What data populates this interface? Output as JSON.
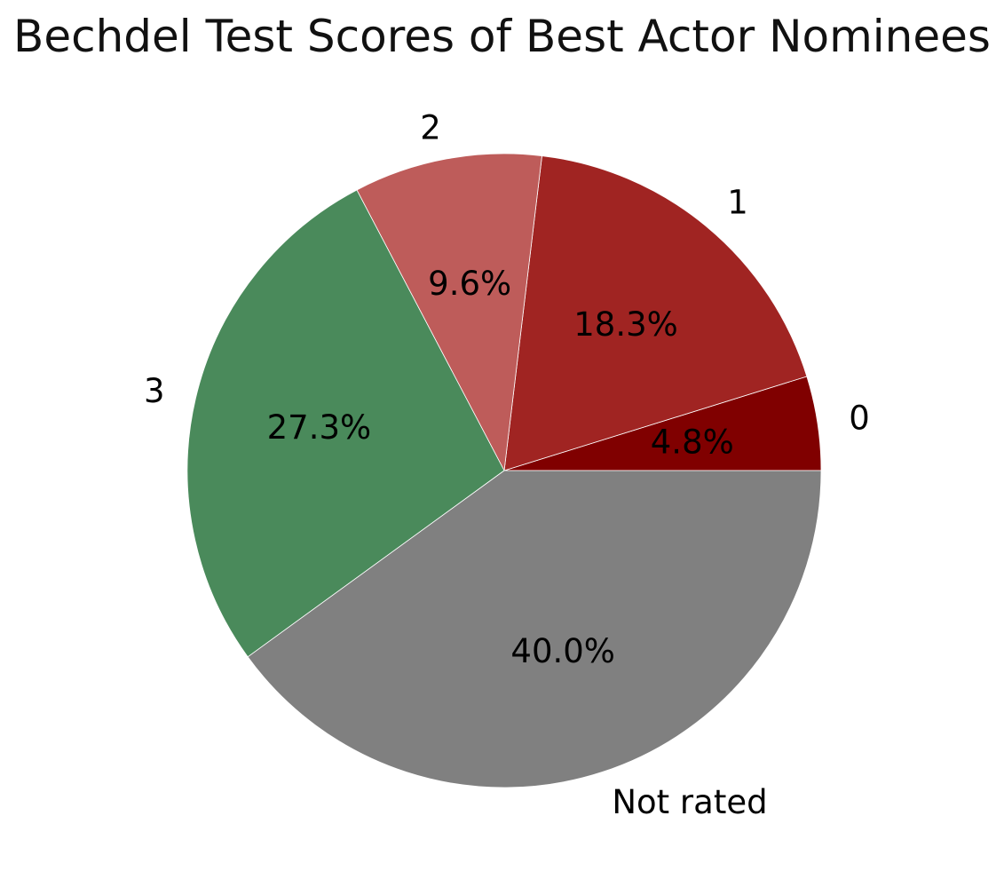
{
  "chart_data": {
    "type": "pie",
    "title": "Bechdel Test Scores of Best Actor Nominees",
    "start_angle_deg": 0,
    "direction": "counterclockwise",
    "slices": [
      {
        "label": "0",
        "value": 4.8,
        "pct_label": "4.8%",
        "color": "#800000"
      },
      {
        "label": "1",
        "value": 18.3,
        "pct_label": "18.3%",
        "color": "#A02422"
      },
      {
        "label": "2",
        "value": 9.6,
        "pct_label": "9.6%",
        "color": "#BE5C5A"
      },
      {
        "label": "3",
        "value": 27.3,
        "pct_label": "27.3%",
        "color": "#4A8A5B"
      },
      {
        "label": "Not rated",
        "value": 40.0,
        "pct_label": "40.0%",
        "color": "#808080"
      }
    ]
  }
}
